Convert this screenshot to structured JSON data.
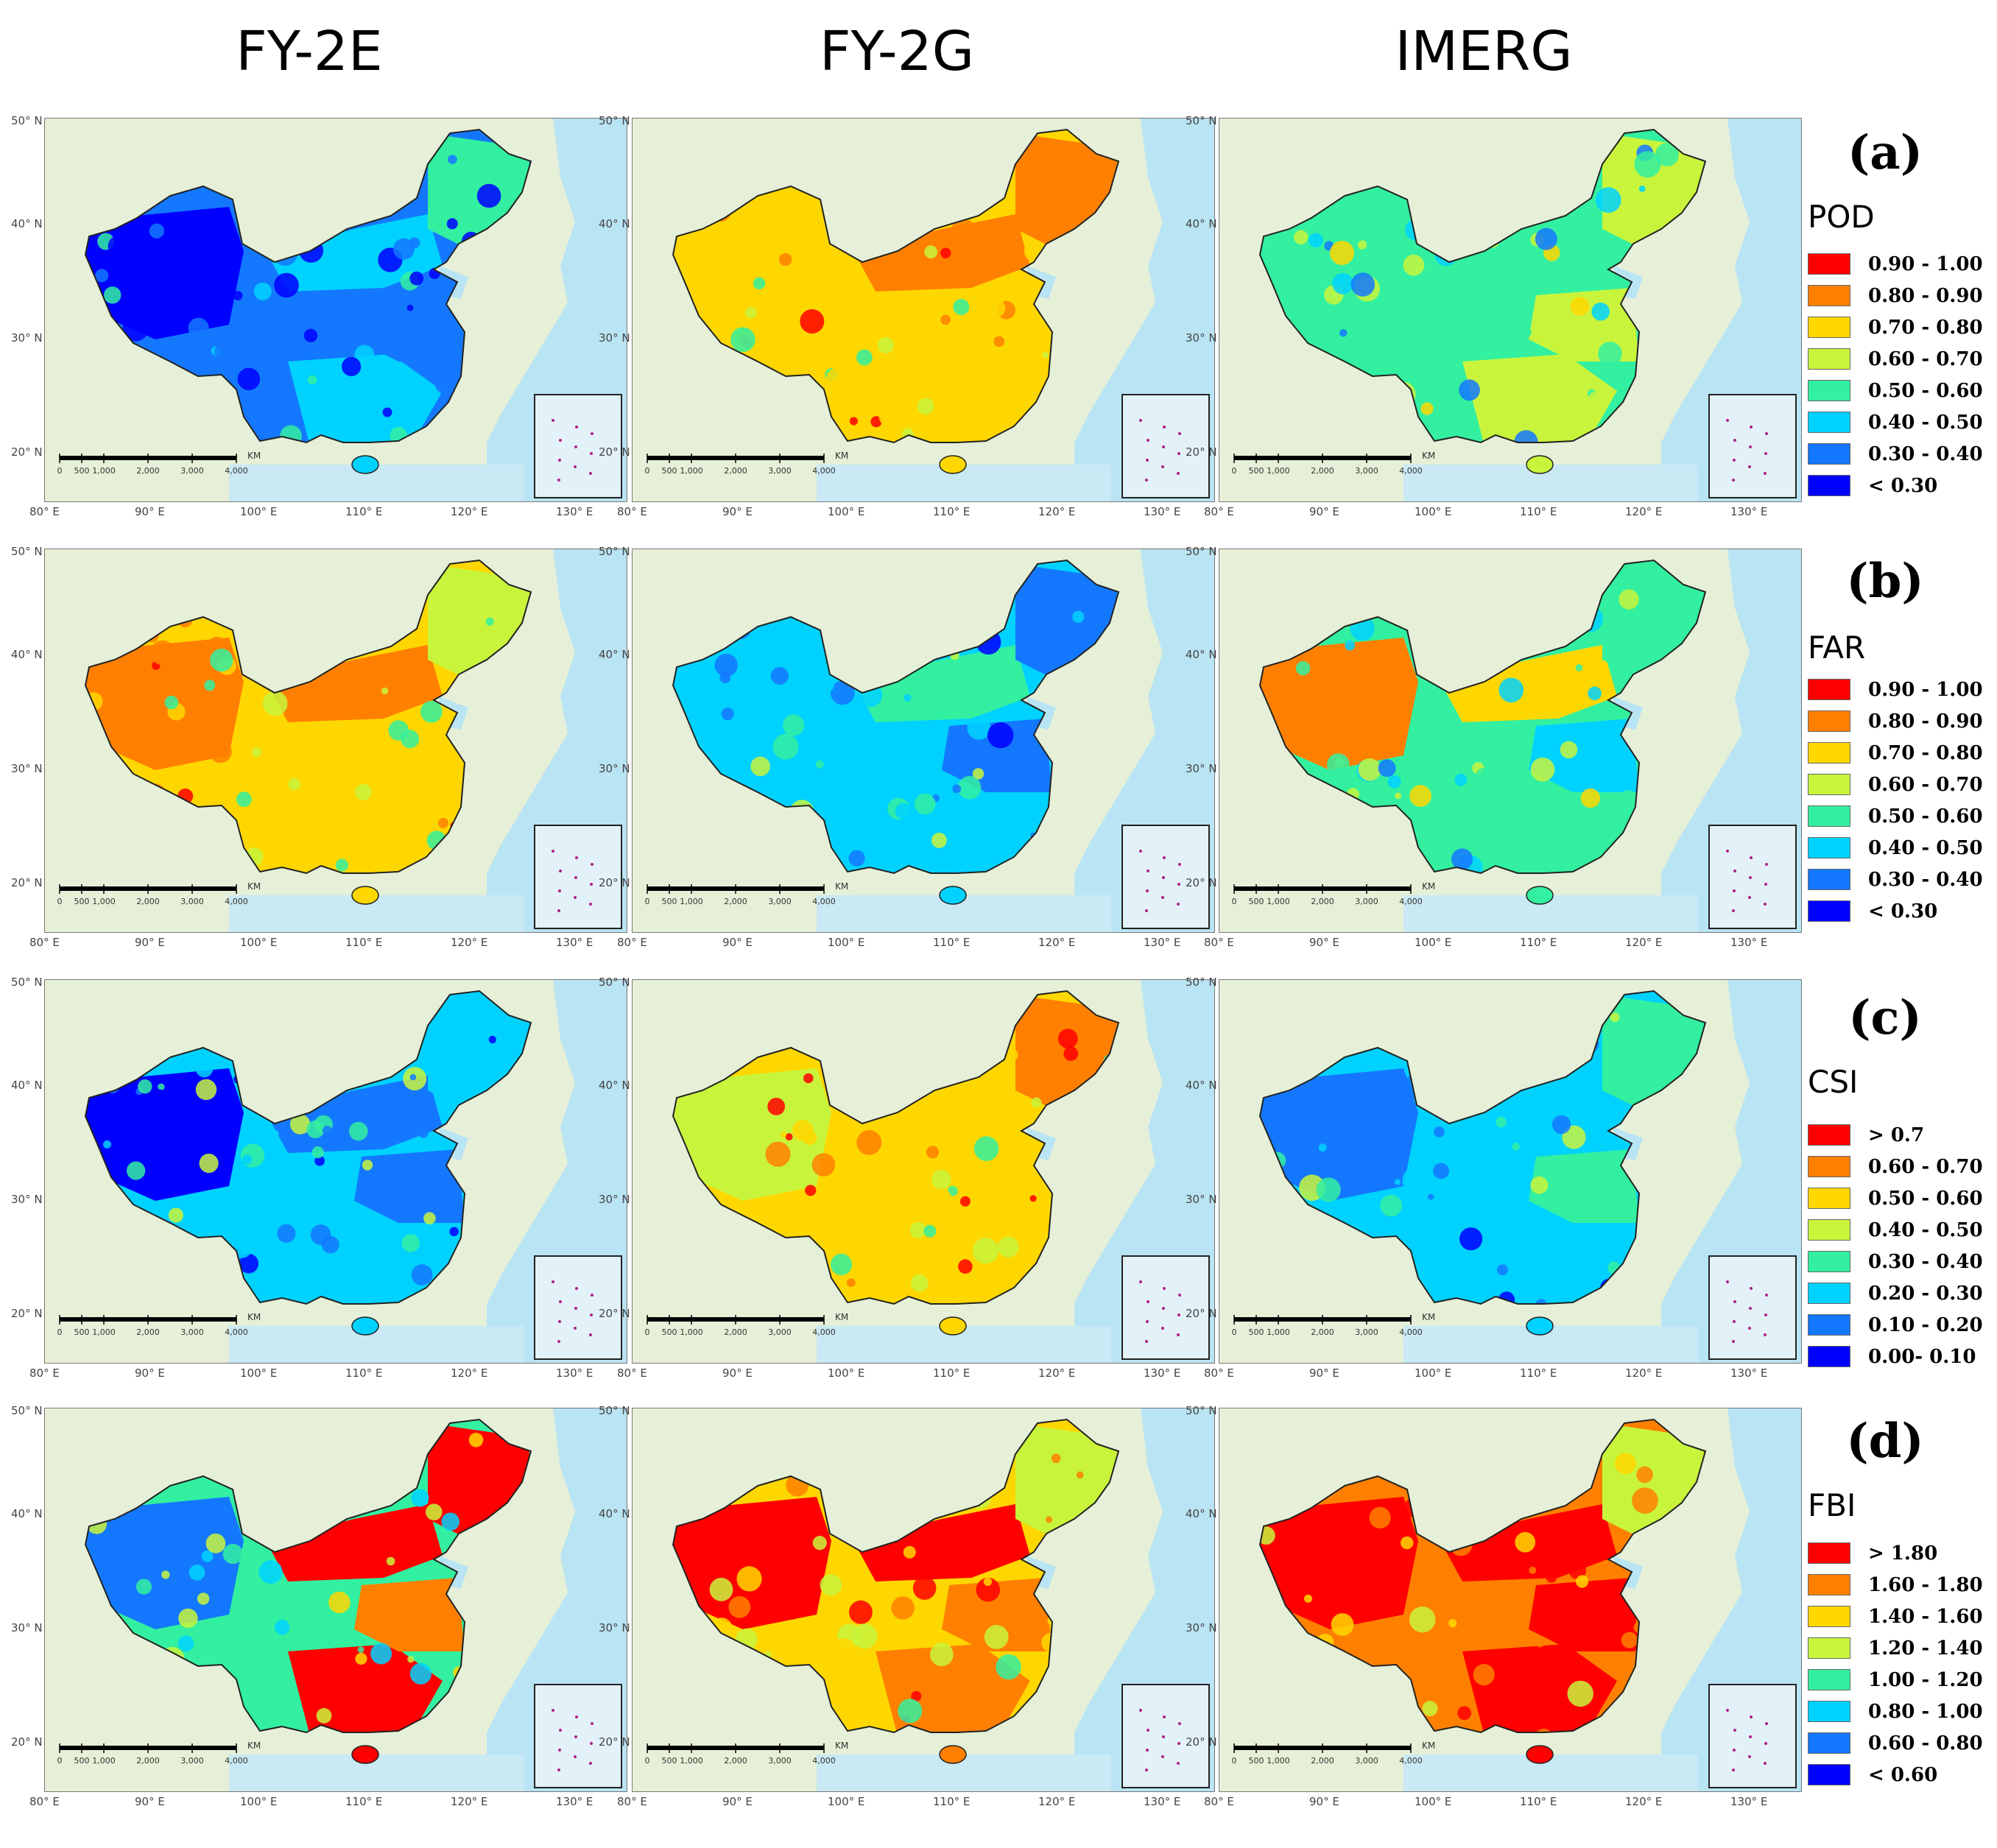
{
  "columns": [
    "FY-2E",
    "FY-2G",
    "IMERG"
  ],
  "axes": {
    "lon_ticks": [
      "80° E",
      "90° E",
      "100° E",
      "110° E",
      "120° E",
      "130° E"
    ],
    "lat_ticks": [
      "50° N",
      "40° N",
      "30° N",
      "20° N"
    ]
  },
  "scale_bar": {
    "labels": [
      "0",
      "500",
      "1,000",
      "2,000",
      "3,000",
      "4,000"
    ],
    "unit": "KM"
  },
  "rows": [
    {
      "label": "(a)",
      "metric": "POD",
      "classes": [
        {
          "label": "0.90 - 1.00",
          "color": "#ff0000"
        },
        {
          "label": "0.80 - 0.90",
          "color": "#ff8000"
        },
        {
          "label": "0.70 - 0.80",
          "color": "#ffd700"
        },
        {
          "label": "0.60 - 0.70",
          "color": "#c8f53c"
        },
        {
          "label": "0.50 - 0.60",
          "color": "#32f0a0"
        },
        {
          "label": "0.40 - 0.50",
          "color": "#00d2ff"
        },
        {
          "label": "0.30 - 0.40",
          "color": "#1478ff"
        },
        {
          "label": "< 0.30",
          "color": "#0000ff"
        }
      ]
    },
    {
      "label": "(b)",
      "metric": "FAR",
      "classes": [
        {
          "label": "0.90 - 1.00",
          "color": "#ff0000"
        },
        {
          "label": "0.80 - 0.90",
          "color": "#ff8000"
        },
        {
          "label": "0.70 - 0.80",
          "color": "#ffd700"
        },
        {
          "label": "0.60 - 0.70",
          "color": "#c8f53c"
        },
        {
          "label": "0.50 - 0.60",
          "color": "#32f0a0"
        },
        {
          "label": "0.40 - 0.50",
          "color": "#00d2ff"
        },
        {
          "label": "0.30 - 0.40",
          "color": "#1478ff"
        },
        {
          "label": "< 0.30",
          "color": "#0000ff"
        }
      ]
    },
    {
      "label": "(c)",
      "metric": "CSI",
      "classes": [
        {
          "label": "> 0.7",
          "color": "#ff0000"
        },
        {
          "label": "0.60 - 0.70",
          "color": "#ff8000"
        },
        {
          "label": "0.50 - 0.60",
          "color": "#ffd700"
        },
        {
          "label": "0.40 - 0.50",
          "color": "#c8f53c"
        },
        {
          "label": "0.30 - 0.40",
          "color": "#32f0a0"
        },
        {
          "label": "0.20 - 0.30",
          "color": "#00d2ff"
        },
        {
          "label": "0.10 - 0.20",
          "color": "#1478ff"
        },
        {
          "label": "0.00- 0.10",
          "color": "#0000ff"
        }
      ]
    },
    {
      "label": "(d)",
      "metric": "FBI",
      "classes": [
        {
          "label": "> 1.80",
          "color": "#ff0000"
        },
        {
          "label": "1.60 - 1.80",
          "color": "#ff8000"
        },
        {
          "label": "1.40 - 1.60",
          "color": "#ffd700"
        },
        {
          "label": "1.20 - 1.40",
          "color": "#c8f53c"
        },
        {
          "label": "1.00 - 1.20",
          "color": "#32f0a0"
        },
        {
          "label": "0.80 - 1.00",
          "color": "#00d2ff"
        },
        {
          "label": "0.60 - 0.80",
          "color": "#1478ff"
        },
        {
          "label": "< 0.60",
          "color": "#0000ff"
        }
      ]
    }
  ],
  "map_regions": {
    "rows": [
      [
        {
          "base": 6,
          "west": 7,
          "north": 5,
          "ne": 4,
          "south": 5,
          "east": 6
        },
        {
          "base": 2,
          "west": 2,
          "north": 1,
          "ne": 1,
          "south": 2,
          "east": 2
        },
        {
          "base": 4,
          "west": 4,
          "north": 4,
          "ne": 3,
          "south": 3,
          "east": 3
        }
      ],
      [
        {
          "base": 2,
          "west": 1,
          "north": 1,
          "ne": 3,
          "south": 2,
          "east": 2
        },
        {
          "base": 5,
          "west": 5,
          "north": 4,
          "ne": 6,
          "south": 5,
          "east": 6
        },
        {
          "base": 4,
          "west": 1,
          "north": 2,
          "ne": 4,
          "south": 4,
          "east": 5
        }
      ],
      [
        {
          "base": 5,
          "west": 7,
          "north": 6,
          "ne": 5,
          "south": 5,
          "east": 6
        },
        {
          "base": 2,
          "west": 3,
          "north": 2,
          "ne": 1,
          "south": 2,
          "east": 2
        },
        {
          "base": 5,
          "west": 6,
          "north": 5,
          "ne": 4,
          "south": 5,
          "east": 4
        }
      ],
      [
        {
          "base": 4,
          "west": 6,
          "north": 0,
          "ne": 0,
          "south": 0,
          "east": 1
        },
        {
          "base": 2,
          "west": 0,
          "north": 0,
          "ne": 3,
          "south": 1,
          "east": 1
        },
        {
          "base": 1,
          "west": 0,
          "north": 0,
          "ne": 3,
          "south": 0,
          "east": 0
        }
      ]
    ]
  }
}
